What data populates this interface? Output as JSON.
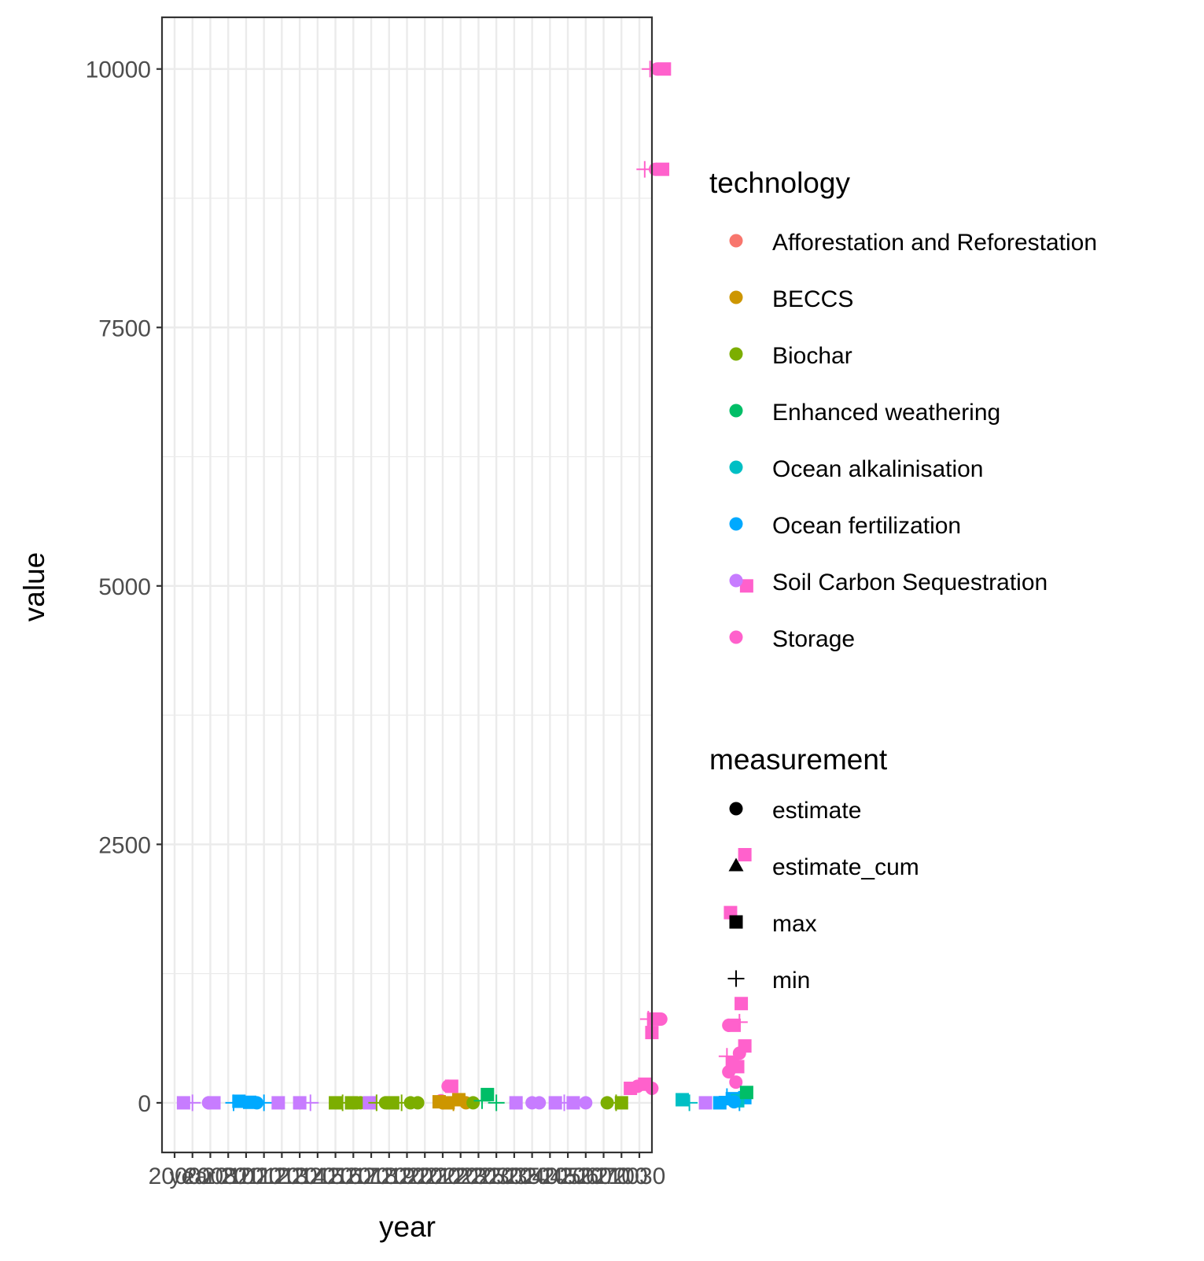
{
  "chart_data": {
    "type": "scatter",
    "xlabel": "year",
    "ylabel": "value",
    "ylim": [
      -480,
      10500
    ],
    "y_ticks": [
      0,
      2500,
      5000,
      7500,
      10000
    ],
    "grid": true,
    "legend_placement": "right",
    "x_categories": [
      "2000",
      "year",
      "2008",
      "2010",
      "2011",
      "2012",
      "2013",
      "2014",
      "2015",
      "2016",
      "2017",
      "2018",
      "2019",
      "2020",
      "2021",
      "2022",
      "2023",
      "2025",
      "2030",
      "2035",
      "2040",
      "2045",
      "2050",
      "2060",
      "2070",
      "2100",
      "2030"
    ],
    "x_tick_labels_visible": [
      "2000",
      "year",
      "2008",
      "2010",
      "2030"
    ],
    "legends": {
      "technology": {
        "title": "technology",
        "items": [
          {
            "label": "Afforestation and Reforestation",
            "color": "#F8766D"
          },
          {
            "label": "BECCS",
            "color": "#CD9600"
          },
          {
            "label": "Biochar",
            "color": "#7CAE00"
          },
          {
            "label": "Enhanced weathering",
            "color": "#00BE67"
          },
          {
            "label": "Ocean alkalinisation",
            "color": "#00BFC4"
          },
          {
            "label": "Ocean fertilization",
            "color": "#00A9FF"
          },
          {
            "label": "Soil Carbon Sequestration",
            "color": "#C77CFF"
          },
          {
            "label": "Storage",
            "color": "#FF61CC"
          }
        ]
      },
      "measurement": {
        "title": "measurement",
        "items": [
          {
            "label": "estimate",
            "shape": "circle"
          },
          {
            "label": "estimate_cum",
            "shape": "triangle"
          },
          {
            "label": "max",
            "shape": "square"
          },
          {
            "label": "min",
            "shape": "plus"
          }
        ]
      }
    },
    "points": [
      {
        "x": 0.5,
        "y": 0,
        "tech": "Soil Carbon Sequestration",
        "shape": "square"
      },
      {
        "x": 1.0,
        "y": 0,
        "tech": "Soil Carbon Sequestration",
        "shape": "plus"
      },
      {
        "x": 1.9,
        "y": 0,
        "tech": "Soil Carbon Sequestration",
        "shape": "circle"
      },
      {
        "x": 2.2,
        "y": 0,
        "tech": "Soil Carbon Sequestration",
        "shape": "square"
      },
      {
        "x": 3.3,
        "y": 0,
        "tech": "Ocean fertilization",
        "shape": "plus"
      },
      {
        "x": 3.6,
        "y": 15,
        "tech": "Ocean fertilization",
        "shape": "square"
      },
      {
        "x": 4.2,
        "y": 5,
        "tech": "Ocean fertilization",
        "shape": "square"
      },
      {
        "x": 4.6,
        "y": 0,
        "tech": "Ocean fertilization",
        "shape": "circle"
      },
      {
        "x": 5.0,
        "y": 0,
        "tech": "Ocean fertilization",
        "shape": "plus"
      },
      {
        "x": 5.8,
        "y": 0,
        "tech": "Soil Carbon Sequestration",
        "shape": "square"
      },
      {
        "x": 7.0,
        "y": 0,
        "tech": "Soil Carbon Sequestration",
        "shape": "square"
      },
      {
        "x": 7.6,
        "y": 0,
        "tech": "Soil Carbon Sequestration",
        "shape": "plus"
      },
      {
        "x": 9.0,
        "y": 0,
        "tech": "Biochar",
        "shape": "square"
      },
      {
        "x": 9.4,
        "y": 0,
        "tech": "Biochar",
        "shape": "plus"
      },
      {
        "x": 9.9,
        "y": 0,
        "tech": "Biochar",
        "shape": "square"
      },
      {
        "x": 10.4,
        "y": 0,
        "tech": "Biochar",
        "shape": "circle"
      },
      {
        "x": 10.9,
        "y": 0,
        "tech": "Soil Carbon Sequestration",
        "shape": "square"
      },
      {
        "x": 11.3,
        "y": 0,
        "tech": "Biochar",
        "shape": "plus"
      },
      {
        "x": 11.8,
        "y": 0,
        "tech": "Biochar",
        "shape": "circle"
      },
      {
        "x": 12.2,
        "y": 0,
        "tech": "Biochar",
        "shape": "square"
      },
      {
        "x": 12.7,
        "y": 0,
        "tech": "Biochar",
        "shape": "plus"
      },
      {
        "x": 13.2,
        "y": 0,
        "tech": "Biochar",
        "shape": "circle"
      },
      {
        "x": 13.6,
        "y": 0,
        "tech": "Biochar",
        "shape": "circle"
      },
      {
        "x": 14.9,
        "y": 20,
        "tech": "Storage",
        "shape": "circle"
      },
      {
        "x": 15.3,
        "y": 160,
        "tech": "Storage",
        "shape": "circle"
      },
      {
        "x": 15.5,
        "y": 160,
        "tech": "Storage",
        "shape": "square"
      },
      {
        "x": 14.8,
        "y": 10,
        "tech": "BECCS",
        "shape": "square"
      },
      {
        "x": 15.0,
        "y": 0,
        "tech": "BECCS",
        "shape": "circle"
      },
      {
        "x": 15.3,
        "y": 0,
        "tech": "BECCS",
        "shape": "square"
      },
      {
        "x": 15.6,
        "y": 0,
        "tech": "BECCS",
        "shape": "plus"
      },
      {
        "x": 15.9,
        "y": 30,
        "tech": "BECCS",
        "shape": "square"
      },
      {
        "x": 16.3,
        "y": 0,
        "tech": "BECCS",
        "shape": "circle"
      },
      {
        "x": 16.7,
        "y": 0,
        "tech": "Biochar",
        "shape": "circle"
      },
      {
        "x": 17.2,
        "y": 20,
        "tech": "Enhanced weathering",
        "shape": "plus"
      },
      {
        "x": 17.5,
        "y": 80,
        "tech": "Enhanced weathering",
        "shape": "square"
      },
      {
        "x": 18.0,
        "y": 0,
        "tech": "Enhanced weathering",
        "shape": "plus"
      },
      {
        "x": 19.1,
        "y": 0,
        "tech": "Soil Carbon Sequestration",
        "shape": "square"
      },
      {
        "x": 20.0,
        "y": 0,
        "tech": "Soil Carbon Sequestration",
        "shape": "circle"
      },
      {
        "x": 20.4,
        "y": 0,
        "tech": "Soil Carbon Sequestration",
        "shape": "circle"
      },
      {
        "x": 21.3,
        "y": 0,
        "tech": "Soil Carbon Sequestration",
        "shape": "square"
      },
      {
        "x": 21.8,
        "y": 0,
        "tech": "Soil Carbon Sequestration",
        "shape": "plus"
      },
      {
        "x": 22.3,
        "y": 0,
        "tech": "Soil Carbon Sequestration",
        "shape": "square"
      },
      {
        "x": 23.0,
        "y": 0,
        "tech": "Soil Carbon Sequestration",
        "shape": "circle"
      },
      {
        "x": 24.2,
        "y": 0,
        "tech": "Biochar",
        "shape": "circle"
      },
      {
        "x": 24.7,
        "y": 0,
        "tech": "Biochar",
        "shape": "plus"
      },
      {
        "x": 25.0,
        "y": 0,
        "tech": "Biochar",
        "shape": "square"
      },
      {
        "x": 25.5,
        "y": 140,
        "tech": "Storage",
        "shape": "square"
      },
      {
        "x": 25.9,
        "y": 160,
        "tech": "Storage",
        "shape": "circle"
      },
      {
        "x": 26.3,
        "y": 180,
        "tech": "Storage",
        "shape": "square"
      },
      {
        "x": 26.7,
        "y": 140,
        "tech": "Storage",
        "shape": "circle"
      },
      {
        "x": 26.6,
        "y": 10000,
        "tech": "Storage",
        "shape": "plus"
      },
      {
        "x": 27.0,
        "y": 10000,
        "tech": "Storage",
        "shape": "circle"
      },
      {
        "x": 27.4,
        "y": 10000,
        "tech": "Storage",
        "shape": "square"
      },
      {
        "x": 26.3,
        "y": 9030,
        "tech": "Storage",
        "shape": "plus"
      },
      {
        "x": 26.9,
        "y": 9030,
        "tech": "Storage",
        "shape": "circle"
      },
      {
        "x": 27.3,
        "y": 9030,
        "tech": "Storage",
        "shape": "square"
      },
      {
        "x": 26.5,
        "y": 810,
        "tech": "Storage",
        "shape": "plus"
      },
      {
        "x": 26.8,
        "y": 810,
        "tech": "Storage",
        "shape": "square"
      },
      {
        "x": 27.2,
        "y": 810,
        "tech": "Storage",
        "shape": "circle"
      },
      {
        "x": 26.7,
        "y": 680,
        "tech": "Storage",
        "shape": "square"
      },
      {
        "x": 28.4,
        "y": 30,
        "tech": "Ocean alkalinisation",
        "shape": "square"
      },
      {
        "x": 28.8,
        "y": 0,
        "tech": "Ocean alkalinisation",
        "shape": "plus"
      },
      {
        "x": 29.7,
        "y": 0,
        "tech": "Soil Carbon Sequestration",
        "shape": "square"
      },
      {
        "x": 30.5,
        "y": 0,
        "tech": "Ocean fertilization",
        "shape": "square"
      },
      {
        "x": 30.9,
        "y": 60,
        "tech": "Ocean fertilization",
        "shape": "plus"
      },
      {
        "x": 31.0,
        "y": 750,
        "tech": "Storage",
        "shape": "circle"
      },
      {
        "x": 31.3,
        "y": 750,
        "tech": "Storage",
        "shape": "square"
      },
      {
        "x": 31.6,
        "y": 780,
        "tech": "Storage",
        "shape": "plus"
      },
      {
        "x": 30.9,
        "y": 450,
        "tech": "Storage",
        "shape": "plus"
      },
      {
        "x": 31.2,
        "y": 380,
        "tech": "Storage",
        "shape": "square"
      },
      {
        "x": 31.0,
        "y": 300,
        "tech": "Storage",
        "shape": "circle"
      },
      {
        "x": 31.4,
        "y": 200,
        "tech": "Storage",
        "shape": "circle"
      },
      {
        "x": 31.1,
        "y": 1840,
        "tech": "Storage",
        "shape": "square"
      },
      {
        "x": 31.7,
        "y": 960,
        "tech": "Storage",
        "shape": "square"
      },
      {
        "x": 31.9,
        "y": 550,
        "tech": "Storage",
        "shape": "square"
      },
      {
        "x": 31.6,
        "y": 480,
        "tech": "Storage",
        "shape": "circle"
      },
      {
        "x": 31.5,
        "y": 350,
        "tech": "Storage",
        "shape": "square"
      },
      {
        "x": 31.9,
        "y": 2400,
        "tech": "Storage",
        "shape": "square"
      },
      {
        "x": 32.0,
        "y": 5000,
        "tech": "Storage",
        "shape": "square"
      },
      {
        "x": 31.2,
        "y": 40,
        "tech": "Ocean fertilization",
        "shape": "square"
      },
      {
        "x": 31.6,
        "y": 0,
        "tech": "Ocean fertilization",
        "shape": "plus"
      },
      {
        "x": 31.9,
        "y": 50,
        "tech": "Ocean fertilization",
        "shape": "square"
      },
      {
        "x": 31.5,
        "y": 20,
        "tech": "Ocean alkalinisation",
        "shape": "square"
      },
      {
        "x": 32.0,
        "y": 100,
        "tech": "Enhanced weathering",
        "shape": "square"
      },
      {
        "x": 31.3,
        "y": 10,
        "tech": "Ocean fertilization",
        "shape": "circle"
      }
    ]
  }
}
